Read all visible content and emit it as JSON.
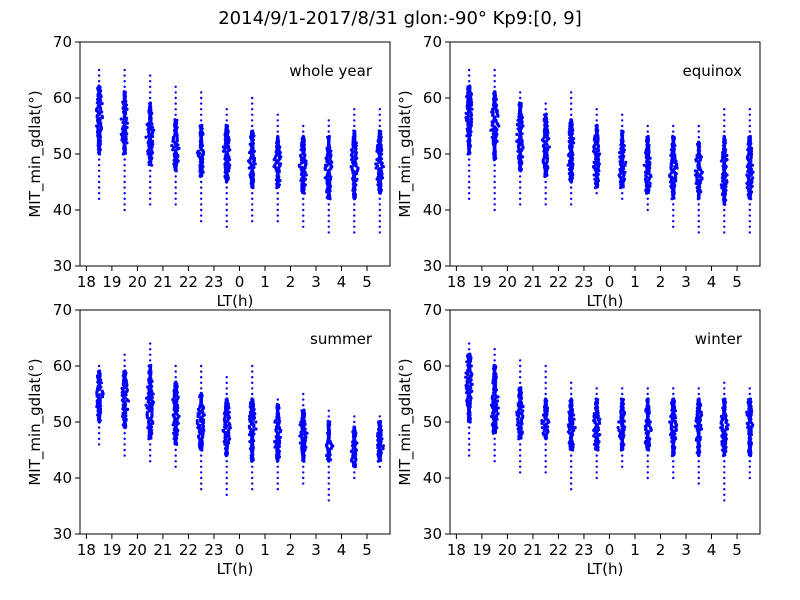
{
  "figure": {
    "title": "2014/9/1-2017/8/31  glon:-90° Kp9:[0, 9]"
  },
  "chart_data": [
    {
      "type": "scatter",
      "panel": "whole year",
      "xlabel": "LT(h)",
      "ylabel": "MIT_min_gdlat(°)",
      "ylim": [
        30,
        70
      ],
      "yticks": [
        30,
        40,
        50,
        60,
        70
      ],
      "xticks": [
        "18",
        "19",
        "20",
        "21",
        "22",
        "23",
        "0",
        "1",
        "2",
        "3",
        "4",
        "5"
      ],
      "marker_color": "#0000ff",
      "columns": [
        {
          "lt": "18.5",
          "core": [
            50,
            62
          ],
          "range": [
            42,
            65
          ],
          "center": 57
        },
        {
          "lt": "19.5",
          "core": [
            50,
            61
          ],
          "range": [
            40,
            65
          ],
          "center": 55
        },
        {
          "lt": "20.5",
          "core": [
            48,
            59
          ],
          "range": [
            41,
            64
          ],
          "center": 53
        },
        {
          "lt": "21.5",
          "core": [
            47,
            56
          ],
          "range": [
            41,
            62
          ],
          "center": 51
        },
        {
          "lt": "22.5",
          "core": [
            46,
            55
          ],
          "range": [
            38,
            61
          ],
          "center": 50
        },
        {
          "lt": "23.5",
          "core": [
            45,
            55
          ],
          "range": [
            37,
            58
          ],
          "center": 50
        },
        {
          "lt": "0.5",
          "core": [
            44,
            54
          ],
          "range": [
            38,
            60
          ],
          "center": 49
        },
        {
          "lt": "1.5",
          "core": [
            44,
            53
          ],
          "range": [
            38,
            57
          ],
          "center": 48
        },
        {
          "lt": "2.5",
          "core": [
            43,
            53
          ],
          "range": [
            37,
            55
          ],
          "center": 48
        },
        {
          "lt": "3.5",
          "core": [
            42,
            53
          ],
          "range": [
            36,
            56
          ],
          "center": 47
        },
        {
          "lt": "4.5",
          "core": [
            42,
            54
          ],
          "range": [
            36,
            58
          ],
          "center": 48
        },
        {
          "lt": "5.5",
          "core": [
            43,
            54
          ],
          "range": [
            36,
            58
          ],
          "center": 48
        }
      ]
    },
    {
      "type": "scatter",
      "panel": "equinox",
      "xlabel": "LT(h)",
      "ylabel": "MIT_min_gdlat(°)",
      "ylim": [
        30,
        70
      ],
      "yticks": [
        30,
        40,
        50,
        60,
        70
      ],
      "xticks": [
        "18",
        "19",
        "20",
        "21",
        "22",
        "23",
        "0",
        "1",
        "2",
        "3",
        "4",
        "5"
      ],
      "marker_color": "#0000ff",
      "columns": [
        {
          "lt": "18.5",
          "core": [
            50,
            62
          ],
          "range": [
            42,
            65
          ],
          "center": 57
        },
        {
          "lt": "19.5",
          "core": [
            49,
            61
          ],
          "range": [
            40,
            65
          ],
          "center": 55
        },
        {
          "lt": "20.5",
          "core": [
            47,
            59
          ],
          "range": [
            41,
            61
          ],
          "center": 53
        },
        {
          "lt": "21.5",
          "core": [
            46,
            57
          ],
          "range": [
            41,
            59
          ],
          "center": 51
        },
        {
          "lt": "22.5",
          "core": [
            45,
            56
          ],
          "range": [
            41,
            61
          ],
          "center": 50
        },
        {
          "lt": "23.5",
          "core": [
            44,
            55
          ],
          "range": [
            43,
            58
          ],
          "center": 49
        },
        {
          "lt": "0.5",
          "core": [
            44,
            54
          ],
          "range": [
            42,
            57
          ],
          "center": 48
        },
        {
          "lt": "1.5",
          "core": [
            43,
            53
          ],
          "range": [
            40,
            55
          ],
          "center": 47
        },
        {
          "lt": "2.5",
          "core": [
            42,
            53
          ],
          "range": [
            37,
            55
          ],
          "center": 47
        },
        {
          "lt": "3.5",
          "core": [
            42,
            52
          ],
          "range": [
            36,
            55
          ],
          "center": 47
        },
        {
          "lt": "4.5",
          "core": [
            41,
            53
          ],
          "range": [
            36,
            58
          ],
          "center": 47
        },
        {
          "lt": "5.5",
          "core": [
            42,
            53
          ],
          "range": [
            36,
            58
          ],
          "center": 47
        }
      ]
    },
    {
      "type": "scatter",
      "panel": "summer",
      "xlabel": "LT(h)",
      "ylabel": "MIT_min_gdlat(°)",
      "ylim": [
        30,
        70
      ],
      "yticks": [
        30,
        40,
        50,
        60,
        70
      ],
      "xticks": [
        "18",
        "19",
        "20",
        "21",
        "22",
        "23",
        "0",
        "1",
        "2",
        "3",
        "4",
        "5"
      ],
      "marker_color": "#0000ff",
      "columns": [
        {
          "lt": "18.5",
          "core": [
            50,
            59
          ],
          "range": [
            46,
            60
          ],
          "center": 55
        },
        {
          "lt": "19.5",
          "core": [
            49,
            59
          ],
          "range": [
            44,
            62
          ],
          "center": 54
        },
        {
          "lt": "20.5",
          "core": [
            47,
            60
          ],
          "range": [
            43,
            64
          ],
          "center": 53
        },
        {
          "lt": "21.5",
          "core": [
            46,
            57
          ],
          "range": [
            42,
            60
          ],
          "center": 52
        },
        {
          "lt": "22.5",
          "core": [
            45,
            55
          ],
          "range": [
            38,
            60
          ],
          "center": 50
        },
        {
          "lt": "23.5",
          "core": [
            44,
            54
          ],
          "range": [
            37,
            58
          ],
          "center": 49
        },
        {
          "lt": "0.5",
          "core": [
            43,
            54
          ],
          "range": [
            38,
            60
          ],
          "center": 49
        },
        {
          "lt": "1.5",
          "core": [
            43,
            53
          ],
          "range": [
            38,
            54
          ],
          "center": 48
        },
        {
          "lt": "2.5",
          "core": [
            43,
            52
          ],
          "range": [
            39,
            55
          ],
          "center": 48
        },
        {
          "lt": "3.5",
          "core": [
            43,
            50
          ],
          "range": [
            36,
            52
          ],
          "center": 46
        },
        {
          "lt": "4.5",
          "core": [
            42,
            49
          ],
          "range": [
            40,
            51
          ],
          "center": 45
        },
        {
          "lt": "5.5",
          "core": [
            43,
            50
          ],
          "range": [
            42,
            51
          ],
          "center": 46
        }
      ]
    },
    {
      "type": "scatter",
      "panel": "winter",
      "xlabel": "LT(h)",
      "ylabel": "MIT_min_gdlat(°)",
      "ylim": [
        30,
        70
      ],
      "yticks": [
        30,
        40,
        50,
        60,
        70
      ],
      "xticks": [
        "18",
        "19",
        "20",
        "21",
        "22",
        "23",
        "0",
        "1",
        "2",
        "3",
        "4",
        "5"
      ],
      "marker_color": "#0000ff",
      "columns": [
        {
          "lt": "18.5",
          "core": [
            50,
            62
          ],
          "range": [
            44,
            64
          ],
          "center": 57
        },
        {
          "lt": "19.5",
          "core": [
            48,
            60
          ],
          "range": [
            43,
            63
          ],
          "center": 53
        },
        {
          "lt": "20.5",
          "core": [
            47,
            56
          ],
          "range": [
            41,
            61
          ],
          "center": 51
        },
        {
          "lt": "21.5",
          "core": [
            47,
            54
          ],
          "range": [
            41,
            60
          ],
          "center": 50
        },
        {
          "lt": "22.5",
          "core": [
            45,
            54
          ],
          "range": [
            38,
            57
          ],
          "center": 49
        },
        {
          "lt": "23.5",
          "core": [
            45,
            54
          ],
          "range": [
            40,
            56
          ],
          "center": 49
        },
        {
          "lt": "0.5",
          "core": [
            45,
            54
          ],
          "range": [
            42,
            56
          ],
          "center": 49
        },
        {
          "lt": "1.5",
          "core": [
            45,
            54
          ],
          "range": [
            40,
            56
          ],
          "center": 49
        },
        {
          "lt": "2.5",
          "core": [
            44,
            54
          ],
          "range": [
            40,
            56
          ],
          "center": 49
        },
        {
          "lt": "3.5",
          "core": [
            44,
            54
          ],
          "range": [
            39,
            56
          ],
          "center": 49
        },
        {
          "lt": "4.5",
          "core": [
            44,
            54
          ],
          "range": [
            36,
            57
          ],
          "center": 49
        },
        {
          "lt": "5.5",
          "core": [
            44,
            54
          ],
          "range": [
            40,
            56
          ],
          "center": 50
        }
      ]
    }
  ]
}
